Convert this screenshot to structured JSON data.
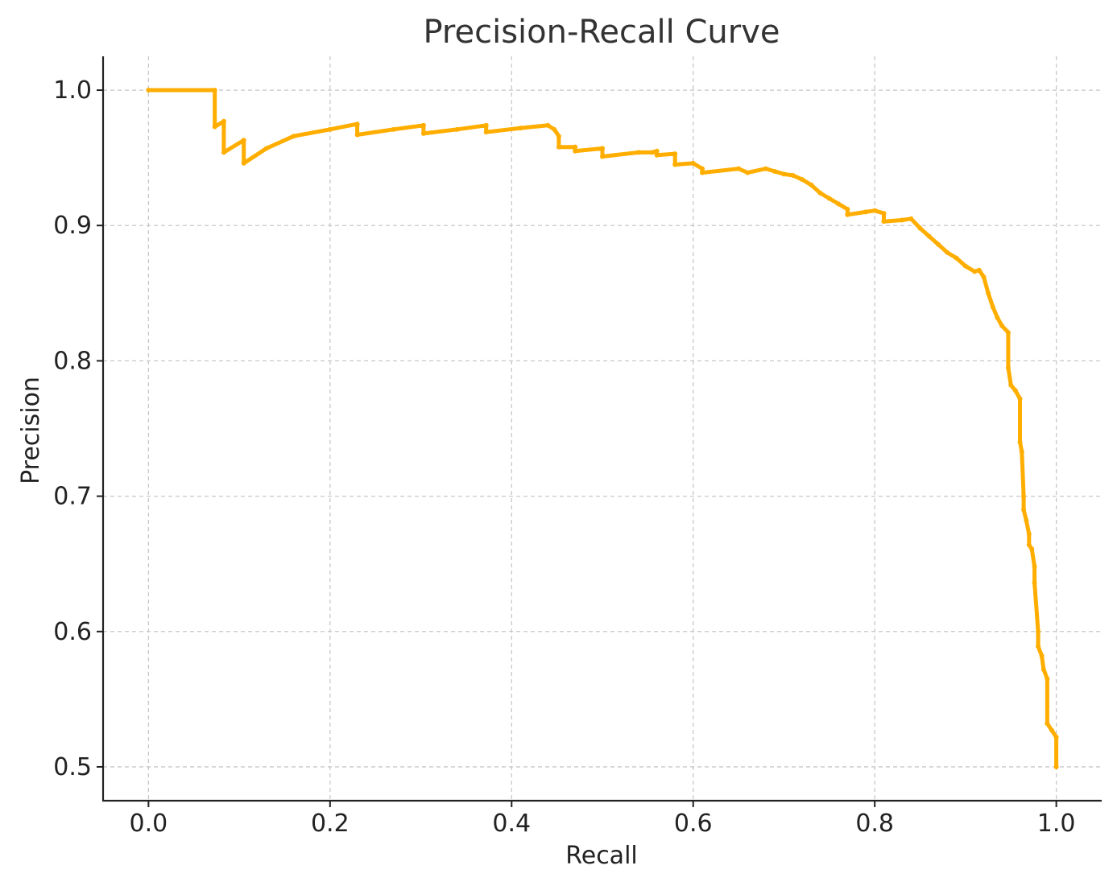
{
  "chart_data": {
    "type": "line",
    "title": "Precision-Recall Curve",
    "xlabel": "Recall",
    "ylabel": "Precision",
    "xlim": [
      -0.05,
      1.05
    ],
    "ylim": [
      0.475,
      1.025
    ],
    "grid": true,
    "x_ticks": [
      "0.0",
      "0.2",
      "0.4",
      "0.6",
      "0.8",
      "1.0"
    ],
    "y_ticks": [
      "0.5",
      "0.6",
      "0.7",
      "0.8",
      "0.9",
      "1.0"
    ],
    "series": [
      {
        "color": "#ffae00",
        "x": [
          0.0,
          0.073,
          0.073,
          0.083,
          0.083,
          0.105,
          0.105,
          0.13,
          0.16,
          0.2,
          0.23,
          0.23,
          0.27,
          0.303,
          0.303,
          0.34,
          0.372,
          0.372,
          0.41,
          0.44,
          0.447,
          0.452,
          0.452,
          0.47,
          0.47,
          0.5,
          0.5,
          0.54,
          0.555,
          0.56,
          0.56,
          0.58,
          0.58,
          0.6,
          0.61,
          0.61,
          0.65,
          0.66,
          0.68,
          0.69,
          0.7,
          0.71,
          0.72,
          0.73,
          0.74,
          0.75,
          0.76,
          0.77,
          0.77,
          0.79,
          0.8,
          0.81,
          0.81,
          0.83,
          0.84,
          0.85,
          0.86,
          0.87,
          0.88,
          0.89,
          0.9,
          0.91,
          0.915,
          0.92,
          0.925,
          0.93,
          0.935,
          0.94,
          0.947,
          0.947,
          0.95,
          0.955,
          0.96,
          0.96,
          0.962,
          0.964,
          0.964,
          0.967,
          0.97,
          0.97,
          0.973,
          0.976,
          0.976,
          0.98,
          0.98,
          0.984,
          0.986,
          0.99,
          0.99,
          0.995,
          1.0,
          1.0
        ],
        "y": [
          1.0,
          1.0,
          0.973,
          0.977,
          0.954,
          0.963,
          0.946,
          0.957,
          0.966,
          0.971,
          0.975,
          0.967,
          0.971,
          0.974,
          0.968,
          0.971,
          0.974,
          0.969,
          0.972,
          0.974,
          0.971,
          0.966,
          0.958,
          0.958,
          0.955,
          0.957,
          0.951,
          0.954,
          0.954,
          0.955,
          0.952,
          0.953,
          0.945,
          0.946,
          0.942,
          0.939,
          0.942,
          0.939,
          0.942,
          0.94,
          0.938,
          0.937,
          0.934,
          0.93,
          0.924,
          0.92,
          0.916,
          0.912,
          0.908,
          0.91,
          0.911,
          0.909,
          0.903,
          0.904,
          0.905,
          0.898,
          0.892,
          0.886,
          0.88,
          0.876,
          0.87,
          0.866,
          0.867,
          0.862,
          0.85,
          0.84,
          0.832,
          0.826,
          0.821,
          0.795,
          0.782,
          0.778,
          0.772,
          0.74,
          0.733,
          0.7,
          0.69,
          0.682,
          0.672,
          0.664,
          0.661,
          0.648,
          0.636,
          0.6,
          0.589,
          0.582,
          0.572,
          0.565,
          0.532,
          0.527,
          0.522,
          0.5
        ]
      }
    ]
  }
}
